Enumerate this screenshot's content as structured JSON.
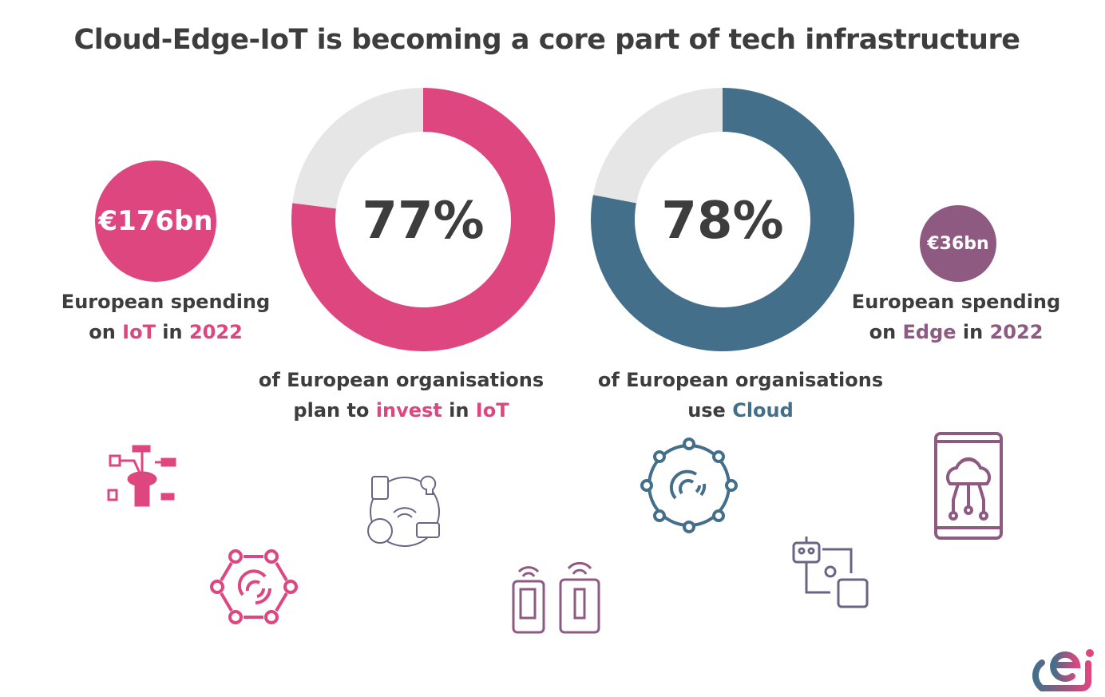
{
  "title": "Cloud-Edge-IoT is becoming a core part of tech infrastructure",
  "colors": {
    "iot": "#de4680",
    "cloud": "#436f8a",
    "edge": "#8f5a82",
    "remainder": "#e6e6e6",
    "text": "#3d3d3d"
  },
  "left_stat": {
    "value": "€176bn",
    "line1": "European spending",
    "line2_pre": "on ",
    "line2_hl1": "IoT",
    "line2_mid": " in ",
    "line2_hl2": "2022"
  },
  "right_stat": {
    "value": "€36bn",
    "line1": "European spending",
    "line2_pre": "on ",
    "line2_hl1": "Edge",
    "line2_mid": " in ",
    "line2_hl2": "2022"
  },
  "donut1_caption": {
    "line1": "of European organisations",
    "line2_pre": "plan to ",
    "line2_hl1": "invest",
    "line2_mid": " in ",
    "line2_hl2": "IoT"
  },
  "donut2_caption": {
    "line1": "of European organisations",
    "line2_pre": "use ",
    "line2_hl1": "Cloud"
  },
  "chart_data": [
    {
      "type": "pie",
      "variant": "donut",
      "label": "77%",
      "values": [
        77,
        23
      ],
      "colors": [
        "#de4680",
        "#e6e6e6"
      ]
    },
    {
      "type": "pie",
      "variant": "donut",
      "label": "78%",
      "values": [
        78,
        22
      ],
      "colors": [
        "#436f8a",
        "#e6e6e6"
      ]
    }
  ],
  "icons": [
    "iot-devices-icon",
    "network-signal-icon",
    "smart-home-icon",
    "smartphones-wifi-icon",
    "cloud-network-icon",
    "robot-process-icon",
    "phone-cloud-icon",
    "cei-logo"
  ]
}
